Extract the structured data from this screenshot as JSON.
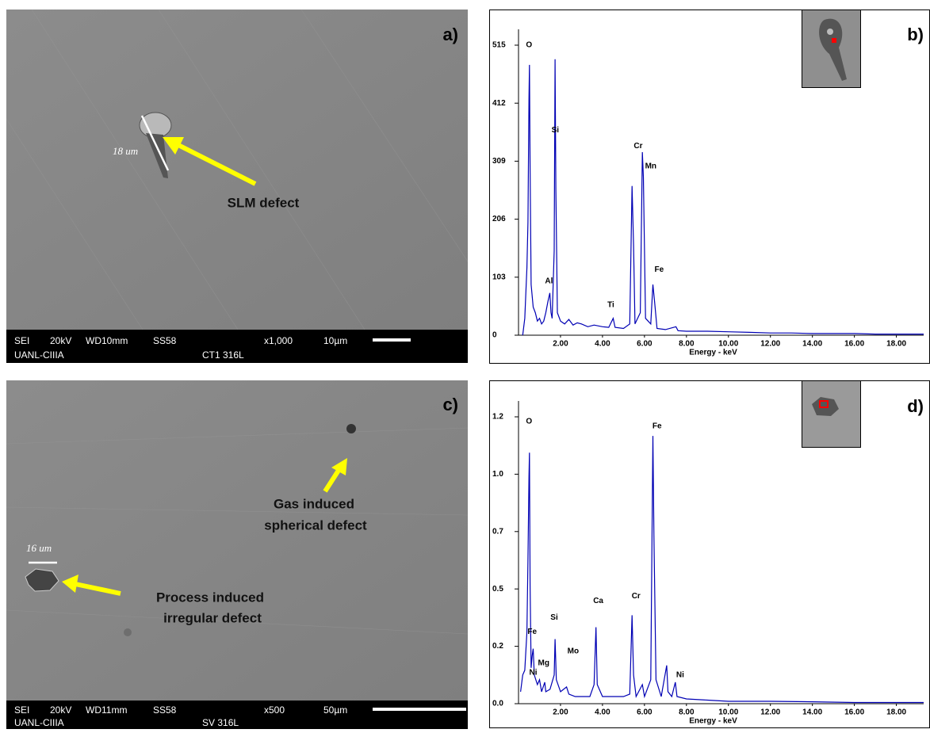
{
  "panels": {
    "a": {
      "label": "a)",
      "scale_annotation": "18 um",
      "callout": [
        "SLM defect"
      ],
      "footer": {
        "mode": "SEI",
        "voltage": "20kV",
        "wd": "WD10mm",
        "spot": "SS58",
        "mag": "x1,000",
        "scale": "10µm",
        "institution": "UANL-CIIIA",
        "sample": "CT1 316L"
      }
    },
    "c": {
      "label": "c)",
      "scale_annotation": "16 um",
      "callout": [
        "Gas induced",
        "spherical defect"
      ],
      "callout_2": [
        "Process induced",
        "irregular defect"
      ],
      "footer": {
        "mode": "SEI",
        "voltage": "20kV",
        "wd": "WD11mm",
        "spot": "SS58",
        "mag": "x500",
        "scale": "50µm",
        "institution": "UANL-CIIIA",
        "sample": "SV 316L"
      }
    }
  },
  "chart_data": [
    {
      "type": "line",
      "panel_label": "b)",
      "x_label": "Energy - keV",
      "color": "#0000b4",
      "x": [
        0.2,
        0.3,
        0.4,
        0.45,
        0.5,
        0.52,
        0.55,
        0.6,
        0.7,
        0.8,
        0.9,
        1.0,
        1.1,
        1.2,
        1.3,
        1.4,
        1.49,
        1.55,
        1.6,
        1.7,
        1.74,
        1.78,
        1.85,
        2.0,
        2.2,
        2.4,
        2.6,
        2.8,
        3.0,
        3.3,
        3.6,
        4.0,
        4.3,
        4.51,
        4.6,
        5.0,
        5.3,
        5.41,
        5.48,
        5.55,
        5.8,
        5.9,
        5.95,
        6.05,
        6.3,
        6.4,
        6.48,
        6.6,
        7.0,
        7.5,
        7.6,
        8.0,
        9.0,
        10.0,
        11.0,
        12.0,
        13.0,
        14.0,
        15.0,
        16.0,
        17.0,
        18.0,
        19.3
      ],
      "values": [
        0,
        30,
        120,
        200,
        420,
        480,
        300,
        90,
        50,
        40,
        25,
        30,
        20,
        25,
        40,
        60,
        75,
        40,
        30,
        150,
        490,
        260,
        40,
        25,
        20,
        28,
        18,
        22,
        20,
        15,
        18,
        15,
        14,
        30,
        14,
        12,
        20,
        265,
        160,
        20,
        40,
        325,
        280,
        30,
        20,
        90,
        60,
        12,
        10,
        15,
        8,
        7,
        7,
        6,
        5,
        4,
        4,
        3,
        3,
        3,
        2,
        2,
        2
      ],
      "xlim": [
        0,
        19.3
      ],
      "ylim": [
        0,
        515
      ],
      "xticks": [
        {
          "value": 2,
          "label": "2.00"
        },
        {
          "value": 4,
          "label": "4.00"
        },
        {
          "value": 6,
          "label": "6.00"
        },
        {
          "value": 8,
          "label": "8.00"
        },
        {
          "value": 10,
          "label": "10.00"
        },
        {
          "value": 12,
          "label": "12.00"
        },
        {
          "value": 14,
          "label": "14.00"
        },
        {
          "value": 16,
          "label": "16.00"
        },
        {
          "value": 18,
          "label": "18.00"
        }
      ],
      "yticks": [
        0,
        103,
        206,
        309,
        412,
        515
      ],
      "annotations": [
        {
          "text": "O",
          "x": 0.5,
          "y": 515
        },
        {
          "text": "Si",
          "x": 1.75,
          "y": 364
        },
        {
          "text": "Al",
          "x": 1.45,
          "y": 96
        },
        {
          "text": "Ti",
          "x": 4.4,
          "y": 54
        },
        {
          "text": "Cr",
          "x": 5.7,
          "y": 336
        },
        {
          "text": "Mn",
          "x": 6.3,
          "y": 300
        },
        {
          "text": "Fe",
          "x": 6.7,
          "y": 116
        }
      ]
    },
    {
      "type": "line",
      "panel_label": "d)",
      "x_label": "Energy - keV",
      "color": "#0000b4",
      "x": [
        0.1,
        0.2,
        0.3,
        0.4,
        0.45,
        0.5,
        0.52,
        0.55,
        0.6,
        0.65,
        0.7,
        0.75,
        0.9,
        1.0,
        1.1,
        1.25,
        1.3,
        1.5,
        1.7,
        1.74,
        1.8,
        2.0,
        2.29,
        2.4,
        2.7,
        3.0,
        3.4,
        3.6,
        3.69,
        3.75,
        4.0,
        4.5,
        5.0,
        5.3,
        5.41,
        5.48,
        5.6,
        5.9,
        6.0,
        6.3,
        6.4,
        6.45,
        6.55,
        6.8,
        7.06,
        7.12,
        7.3,
        7.47,
        7.55,
        8.0,
        9.0,
        10.0,
        12.0,
        14.0,
        16.0,
        18.0,
        19.3
      ],
      "values": [
        0.05,
        0.12,
        0.14,
        0.3,
        0.6,
        0.95,
        1.05,
        0.5,
        0.15,
        0.2,
        0.23,
        0.12,
        0.08,
        0.1,
        0.05,
        0.09,
        0.05,
        0.06,
        0.12,
        0.27,
        0.1,
        0.05,
        0.07,
        0.04,
        0.03,
        0.03,
        0.03,
        0.08,
        0.32,
        0.08,
        0.03,
        0.03,
        0.03,
        0.04,
        0.37,
        0.12,
        0.03,
        0.08,
        0.03,
        0.1,
        1.12,
        0.7,
        0.1,
        0.03,
        0.16,
        0.05,
        0.03,
        0.09,
        0.03,
        0.02,
        0.015,
        0.01,
        0.01,
        0.008,
        0.005,
        0.005,
        0.005
      ],
      "xlim": [
        0,
        19.3
      ],
      "ylim": [
        0,
        1.2
      ],
      "xticks": [
        {
          "value": 2,
          "label": "2.00"
        },
        {
          "value": 4,
          "label": "4.00"
        },
        {
          "value": 6,
          "label": "6.00"
        },
        {
          "value": 8,
          "label": "8.00"
        },
        {
          "value": 10,
          "label": "10.00"
        },
        {
          "value": 12,
          "label": "12.00"
        },
        {
          "value": 14,
          "label": "14.00"
        },
        {
          "value": 16,
          "label": "16.00"
        },
        {
          "value": 18,
          "label": "18.00"
        }
      ],
      "yticks": [
        {
          "value": 0,
          "label": "0.0"
        },
        {
          "value": 0.24,
          "label": "0.2"
        },
        {
          "value": 0.48,
          "label": "0.5"
        },
        {
          "value": 0.72,
          "label": "0.7"
        },
        {
          "value": 0.96,
          "label": "1.0"
        },
        1.2
      ],
      "annotations": [
        {
          "text": "O",
          "x": 0.5,
          "y": 1.18
        },
        {
          "text": "Fe",
          "x": 0.65,
          "y": 0.3
        },
        {
          "text": "Si",
          "x": 1.7,
          "y": 0.36
        },
        {
          "text": "Mg",
          "x": 1.2,
          "y": 0.17
        },
        {
          "text": "Ni",
          "x": 0.7,
          "y": 0.13
        },
        {
          "text": "Mo",
          "x": 2.6,
          "y": 0.22
        },
        {
          "text": "Ca",
          "x": 3.8,
          "y": 0.43
        },
        {
          "text": "Cr",
          "x": 5.6,
          "y": 0.45
        },
        {
          "text": "Fe",
          "x": 6.6,
          "y": 1.16
        },
        {
          "text": "Ni",
          "x": 7.7,
          "y": 0.12
        }
      ]
    }
  ]
}
